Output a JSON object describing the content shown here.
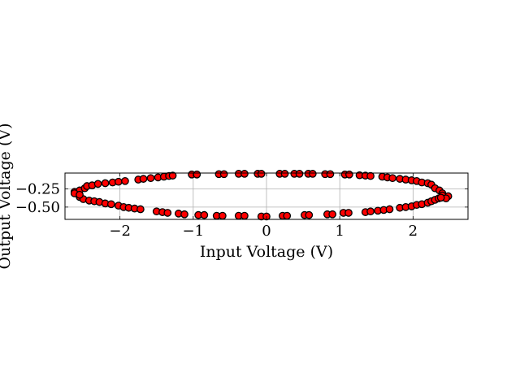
{
  "chart_data": {
    "type": "scatter",
    "xlabel": "Input Voltage (V)",
    "ylabel": "Output Voltage (V)",
    "xlim": [
      -2.75,
      2.75
    ],
    "ylim": [
      -0.67,
      -0.03
    ],
    "xticks": [
      -2,
      -1,
      0,
      1,
      2
    ],
    "xtick_labels": [
      "−2",
      "−1",
      "0",
      "1",
      "2"
    ],
    "yticks": [
      -0.25,
      -0.5
    ],
    "ytick_labels": [
      "−0.25",
      "−0.50"
    ],
    "grid": true,
    "marker_face": "#ff0000",
    "marker_edge": "#000000",
    "series": [
      {
        "points": [
          [
            -2.62,
            -0.29
          ],
          [
            -2.55,
            -0.27
          ],
          [
            -2.48,
            -0.24
          ],
          [
            -2.45,
            -0.21
          ],
          [
            -2.38,
            -0.2
          ],
          [
            -2.3,
            -0.18
          ],
          [
            -2.2,
            -0.17
          ],
          [
            -2.1,
            -0.16
          ],
          [
            -2.02,
            -0.15
          ],
          [
            -1.93,
            -0.14
          ],
          [
            -1.75,
            -0.12
          ],
          [
            -1.68,
            -0.11
          ],
          [
            -1.58,
            -0.1
          ],
          [
            -1.48,
            -0.09
          ],
          [
            -1.4,
            -0.08
          ],
          [
            -1.33,
            -0.07
          ],
          [
            -1.28,
            -0.065
          ],
          [
            -1.02,
            -0.05
          ],
          [
            -0.95,
            -0.05
          ],
          [
            -0.65,
            -0.045
          ],
          [
            -0.58,
            -0.045
          ],
          [
            -0.38,
            -0.04
          ],
          [
            -0.3,
            -0.04
          ],
          [
            -0.12,
            -0.04
          ],
          [
            -0.07,
            -0.04
          ],
          [
            0.18,
            -0.04
          ],
          [
            0.25,
            -0.04
          ],
          [
            0.38,
            -0.04
          ],
          [
            0.45,
            -0.04
          ],
          [
            0.57,
            -0.04
          ],
          [
            0.63,
            -0.04
          ],
          [
            0.8,
            -0.045
          ],
          [
            0.87,
            -0.045
          ],
          [
            1.07,
            -0.05
          ],
          [
            1.13,
            -0.05
          ],
          [
            1.27,
            -0.06
          ],
          [
            1.35,
            -0.065
          ],
          [
            1.42,
            -0.07
          ],
          [
            1.58,
            -0.08
          ],
          [
            1.65,
            -0.09
          ],
          [
            1.72,
            -0.1
          ],
          [
            1.82,
            -0.11
          ],
          [
            1.9,
            -0.12
          ],
          [
            1.98,
            -0.13
          ],
          [
            2.05,
            -0.14
          ],
          [
            2.12,
            -0.16
          ],
          [
            2.2,
            -0.17
          ],
          [
            2.25,
            -0.19
          ],
          [
            2.3,
            -0.24
          ],
          [
            2.36,
            -0.27
          ],
          [
            2.4,
            -0.31
          ],
          [
            2.48,
            -0.35
          ],
          [
            -2.62,
            -0.31
          ],
          [
            -2.55,
            -0.36
          ],
          [
            -2.5,
            -0.39
          ],
          [
            -2.42,
            -0.41
          ],
          [
            -2.35,
            -0.42
          ],
          [
            -2.28,
            -0.43
          ],
          [
            -2.2,
            -0.45
          ],
          [
            -2.12,
            -0.46
          ],
          [
            -2.02,
            -0.48
          ],
          [
            -1.95,
            -0.5
          ],
          [
            -1.88,
            -0.51
          ],
          [
            -1.8,
            -0.52
          ],
          [
            -1.72,
            -0.53
          ],
          [
            -1.5,
            -0.56
          ],
          [
            -1.42,
            -0.57
          ],
          [
            -1.35,
            -0.58
          ],
          [
            -1.2,
            -0.59
          ],
          [
            -1.12,
            -0.6
          ],
          [
            -0.93,
            -0.61
          ],
          [
            -0.85,
            -0.61
          ],
          [
            -0.68,
            -0.62
          ],
          [
            -0.6,
            -0.62
          ],
          [
            -0.38,
            -0.62
          ],
          [
            -0.3,
            -0.62
          ],
          [
            -0.07,
            -0.63
          ],
          [
            0.0,
            -0.63
          ],
          [
            0.22,
            -0.62
          ],
          [
            0.28,
            -0.62
          ],
          [
            0.52,
            -0.61
          ],
          [
            0.58,
            -0.61
          ],
          [
            0.83,
            -0.6
          ],
          [
            0.9,
            -0.6
          ],
          [
            1.05,
            -0.58
          ],
          [
            1.12,
            -0.58
          ],
          [
            1.35,
            -0.57
          ],
          [
            1.42,
            -0.56
          ],
          [
            1.52,
            -0.55
          ],
          [
            1.6,
            -0.54
          ],
          [
            1.68,
            -0.53
          ],
          [
            1.82,
            -0.51
          ],
          [
            1.9,
            -0.5
          ],
          [
            1.98,
            -0.49
          ],
          [
            2.05,
            -0.47
          ],
          [
            2.12,
            -0.46
          ],
          [
            2.2,
            -0.44
          ],
          [
            2.25,
            -0.42
          ],
          [
            2.3,
            -0.4
          ],
          [
            2.35,
            -0.38
          ],
          [
            2.4,
            -0.34
          ],
          [
            2.45,
            -0.38
          ],
          [
            -2.55,
            -0.33
          ],
          [
            2.38,
            -0.37
          ]
        ]
      }
    ]
  }
}
